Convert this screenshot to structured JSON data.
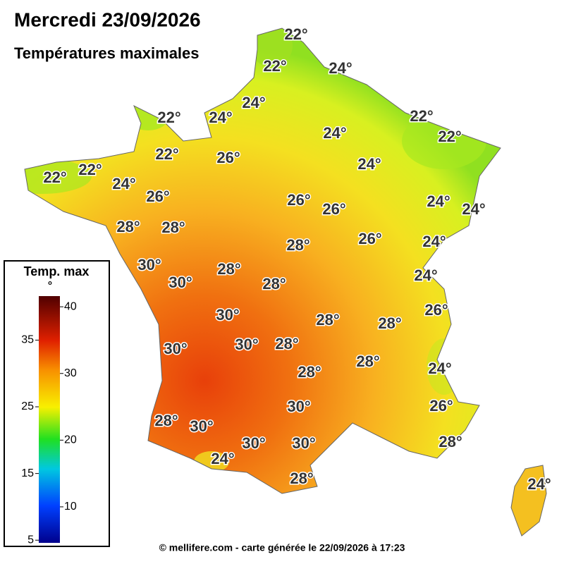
{
  "header": {
    "title": "Mercredi 23/09/2026",
    "subtitle": "Températures maximales"
  },
  "map": {
    "labels": [
      "22°",
      "22°",
      "24°",
      "24°",
      "22°",
      "24°",
      "24°",
      "22°",
      "22°",
      "22°",
      "26°",
      "24°",
      "22°",
      "22°",
      "24°",
      "26°",
      "26°",
      "26°",
      "24°",
      "24°",
      "28°",
      "28°",
      "26°",
      "28°",
      "24°",
      "30°",
      "28°",
      "24°",
      "30°",
      "28°",
      "26°",
      "30°",
      "28°",
      "28°",
      "30°",
      "28°",
      "30°",
      "28°",
      "28°",
      "24°",
      "30°",
      "26°",
      "28°",
      "30°",
      "30°",
      "30°",
      "28°",
      "24°",
      "28°",
      "24°"
    ]
  },
  "legend": {
    "title": "Temp. max",
    "unit": "°",
    "range": [
      4.6,
      41.6
    ],
    "ticks_left": [
      35,
      25,
      15,
      5
    ],
    "ticks_right": [
      40,
      30,
      20,
      10
    ]
  },
  "footer": "© mellifere.com - carte générée le 22/09/2026 à 17:23"
}
